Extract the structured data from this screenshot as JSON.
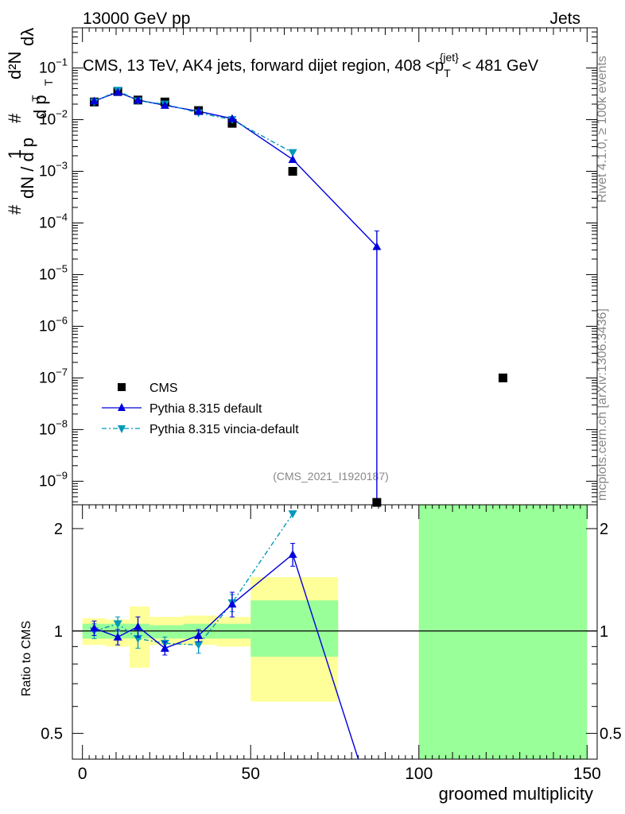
{
  "header": {
    "left": "13000 GeV pp",
    "right": "Jets"
  },
  "plot_title": {
    "main": "CMS, 13 TeV, AK4 jets, forward dijet region, 408 <p",
    "sub": "T",
    "sup": "{jet}",
    "tail": "< 481 GeV"
  },
  "side_labels": {
    "rivet": "Rivet 4.1.0, ≥ 100k events",
    "mcplots": "mcplots.cern.ch [arXiv:1306.3436]"
  },
  "analysis_id": "(CMS_2021_I1920187)",
  "ylabel_main": {
    "a": "#",
    "b": "d²N",
    "c": "#",
    "d": "1",
    "e": "d p",
    "f": "T",
    "g": "dN / d p",
    "h": "T",
    "i": "dλ"
  },
  "colors": {
    "cms": "#000000",
    "pythia_default": "#0000dd",
    "pythia_vincia": "#0099bb",
    "band_inner": "#99ff99",
    "band_outer": "#ffff99"
  },
  "chart_data": [
    {
      "type": "scatter",
      "title": "CMS, 13 TeV, AK4 jets, forward dijet region, 408 < pT{jet} < 481 GeV",
      "xlabel": "",
      "ylabel": "#/dN dpT  d²N/#dpT dλ",
      "yscale": "log",
      "xlim": [
        -3,
        153
      ],
      "ylim": [
        3.5e-10,
        0.6
      ],
      "yticks": [
        "10^{-1}",
        "10^{-2}",
        "10^{-3}",
        "10^{-4}",
        "10^{-5}",
        "10^{-6}",
        "10^{-7}",
        "10^{-8}",
        "10^{-9}"
      ],
      "legend": {
        "position": "bottom-left",
        "entries": [
          "CMS",
          "Pythia 8.315 default",
          "Pythia 8.315 vincia-default"
        ]
      },
      "series": [
        {
          "name": "CMS",
          "marker": "square",
          "x": [
            3.5,
            10.5,
            16.5,
            24.5,
            34.5,
            44.5,
            62.5,
            87.5,
            125
          ],
          "y": [
            0.022,
            0.035,
            0.024,
            0.022,
            0.015,
            0.0085,
            0.001,
            3.5e-10,
            1e-07
          ]
        },
        {
          "name": "Pythia 8.315 default",
          "marker": "triangle-up",
          "x": [
            3.5,
            10.5,
            16.5,
            24.5,
            34.5,
            44.5,
            62.5,
            87.5
          ],
          "y": [
            0.023,
            0.034,
            0.024,
            0.019,
            0.0145,
            0.0105,
            0.0017,
            3.5e-05
          ],
          "yerr_high": [
            null,
            null,
            null,
            null,
            null,
            null,
            null,
            7e-05
          ]
        },
        {
          "name": "Pythia 8.315 vincia-default",
          "marker": "triangle-down",
          "x": [
            3.5,
            10.5,
            16.5,
            24.5,
            34.5,
            44.5,
            62.5
          ],
          "y": [
            0.022,
            0.037,
            0.023,
            0.02,
            0.0135,
            0.01,
            0.0023
          ]
        }
      ]
    },
    {
      "type": "line",
      "title": "",
      "xlabel": "groomed multiplicity",
      "ylabel": "Ratio to CMS",
      "yscale": "log",
      "xlim": [
        -3,
        153
      ],
      "ylim": [
        0.42,
        2.35
      ],
      "xticks": [
        0,
        50,
        100,
        150
      ],
      "xtick_labels": [
        "0",
        "50",
        "100",
        "150"
      ],
      "yticks": [
        0.5,
        1,
        2
      ],
      "ytick_labels": [
        "0.5",
        "1",
        "2"
      ],
      "reference_line": 1,
      "bands": [
        {
          "x0": 0,
          "x1": 7,
          "inner": [
            0.95,
            1.05
          ],
          "outer": [
            0.91,
            1.09
          ]
        },
        {
          "x0": 7,
          "x1": 14,
          "inner": [
            0.95,
            1.05
          ],
          "outer": [
            0.9,
            1.08
          ]
        },
        {
          "x0": 14,
          "x1": 20,
          "inner": [
            0.95,
            1.05
          ],
          "outer": [
            0.78,
            1.18
          ]
        },
        {
          "x0": 20,
          "x1": 30,
          "inner": [
            0.95,
            1.04
          ],
          "outer": [
            0.91,
            1.1
          ]
        },
        {
          "x0": 30,
          "x1": 40,
          "inner": [
            0.95,
            1.05
          ],
          "outer": [
            0.91,
            1.11
          ]
        },
        {
          "x0": 40,
          "x1": 50,
          "inner": [
            0.95,
            1.05
          ],
          "outer": [
            0.9,
            1.1
          ]
        },
        {
          "x0": 50,
          "x1": 76,
          "inner": [
            0.84,
            1.23
          ],
          "outer": [
            0.62,
            1.44
          ]
        },
        {
          "x0": 100,
          "x1": 150,
          "inner": [
            0.42,
            2.35
          ],
          "outer": [
            0.42,
            2.35
          ]
        }
      ],
      "series": [
        {
          "name": "Pythia 8.315 default",
          "marker": "triangle-up",
          "x": [
            3.5,
            10.5,
            16.5,
            24.5,
            34.5,
            44.5,
            62.5,
            82
          ],
          "y": [
            1.02,
            0.96,
            1.03,
            0.89,
            0.97,
            1.2,
            1.68,
            0.42
          ],
          "err": [
            0.05,
            0.05,
            0.07,
            0.04,
            0.04,
            0.1,
            0.13,
            0
          ]
        },
        {
          "name": "Pythia 8.315 vincia-default",
          "marker": "triangle-down",
          "x": [
            3.5,
            10.5,
            16.5,
            24.5,
            34.5,
            44.5,
            62.5
          ],
          "y": [
            1.0,
            1.05,
            0.95,
            0.92,
            0.91,
            1.21,
            2.21
          ],
          "err": [
            0.05,
            0.05,
            0.06,
            0.04,
            0.05,
            0.07,
            0
          ]
        }
      ]
    }
  ]
}
